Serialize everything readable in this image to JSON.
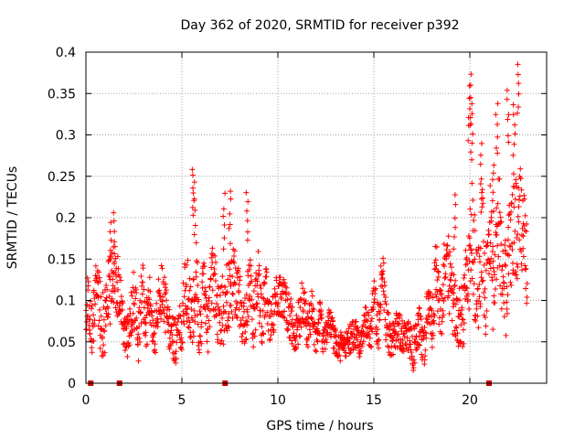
{
  "chart_data": {
    "type": "scatter",
    "title": "Day 362 of 2020, SRMTID for receiver p392",
    "xlabel": "GPS time / hours",
    "ylabel": "SRMTID / TECUs",
    "xlim": [
      0,
      24
    ],
    "ylim": [
      0,
      0.4
    ],
    "x_ticks": [
      0,
      5,
      10,
      15,
      20
    ],
    "x_tick_labels": [
      "0",
      "5",
      "10",
      "15",
      "20"
    ],
    "y_ticks": [
      0,
      0.05,
      0.1,
      0.15,
      0.2,
      0.25,
      0.3,
      0.35,
      0.4
    ],
    "y_tick_labels": [
      "0",
      "0.05",
      "0.1",
      "0.15",
      "0.2",
      "0.25",
      "0.3",
      "0.35",
      "0.4"
    ],
    "grid": true,
    "marker": "plus",
    "color": "#ff0000",
    "gap_marker_color": "#cc0000",
    "data_gaps_at_hours": [
      0.25,
      1.75,
      7.25,
      21.0
    ],
    "series": [
      {
        "name": "SRMTID",
        "trend": {
          "x": [
            0,
            0.5,
            1,
            1.5,
            2,
            2.5,
            3,
            3.5,
            4,
            4.5,
            5,
            5.5,
            6,
            6.5,
            7,
            7.5,
            8,
            8.5,
            9,
            9.5,
            10,
            10.5,
            11,
            11.5,
            12,
            12.5,
            13,
            13.5,
            14,
            14.5,
            15,
            15.5,
            16,
            16.5,
            17,
            17.5,
            18,
            18.5,
            19,
            19.5,
            20,
            20.5,
            21,
            21.5,
            22,
            22.5,
            23
          ],
          "y": [
            0.08,
            0.09,
            0.1,
            0.1,
            0.07,
            0.08,
            0.09,
            0.08,
            0.09,
            0.07,
            0.08,
            0.1,
            0.09,
            0.1,
            0.11,
            0.1,
            0.09,
            0.1,
            0.1,
            0.09,
            0.09,
            0.09,
            0.08,
            0.08,
            0.07,
            0.06,
            0.06,
            0.05,
            0.045,
            0.06,
            0.08,
            0.1,
            0.05,
            0.05,
            0.06,
            0.05,
            0.1,
            0.11,
            0.12,
            0.1,
            0.13,
            0.14,
            0.15,
            0.15,
            0.16,
            0.15,
            0.16
          ]
        },
        "spread": {
          "x": [
            0,
            0.5,
            1,
            1.5,
            2,
            2.5,
            3,
            3.5,
            4,
            4.5,
            5,
            5.5,
            6,
            6.5,
            7,
            7.5,
            8,
            8.5,
            9,
            9.5,
            10,
            10.5,
            11,
            11.5,
            12,
            12.5,
            13,
            13.5,
            14,
            14.5,
            15,
            15.5,
            16,
            16.5,
            17,
            17.5,
            18,
            18.5,
            19,
            19.5,
            20,
            20.5,
            21,
            21.5,
            22,
            22.5,
            23
          ],
          "y": [
            0.03,
            0.04,
            0.05,
            0.05,
            0.03,
            0.04,
            0.04,
            0.03,
            0.04,
            0.03,
            0.04,
            0.06,
            0.04,
            0.04,
            0.05,
            0.05,
            0.04,
            0.04,
            0.04,
            0.03,
            0.03,
            0.03,
            0.03,
            0.03,
            0.025,
            0.02,
            0.02,
            0.02,
            0.02,
            0.025,
            0.03,
            0.04,
            0.025,
            0.025,
            0.03,
            0.025,
            0.04,
            0.05,
            0.05,
            0.04,
            0.08,
            0.07,
            0.06,
            0.07,
            0.08,
            0.08,
            0.06
          ]
        },
        "peaks": {
          "x": [
            1.3,
            1.5,
            5.6,
            5.65,
            7.2,
            7.5,
            8.4,
            19.2,
            19.95,
            20.05,
            20.1,
            20.6,
            21.2,
            21.4,
            22.0,
            22.3,
            22.5
          ],
          "y": [
            0.2,
            0.21,
            0.265,
            0.245,
            0.23,
            0.235,
            0.235,
            0.23,
            0.36,
            0.375,
            0.33,
            0.29,
            0.27,
            0.34,
            0.355,
            0.34,
            0.388
          ]
        },
        "samples_per_hour": 75
      }
    ]
  }
}
